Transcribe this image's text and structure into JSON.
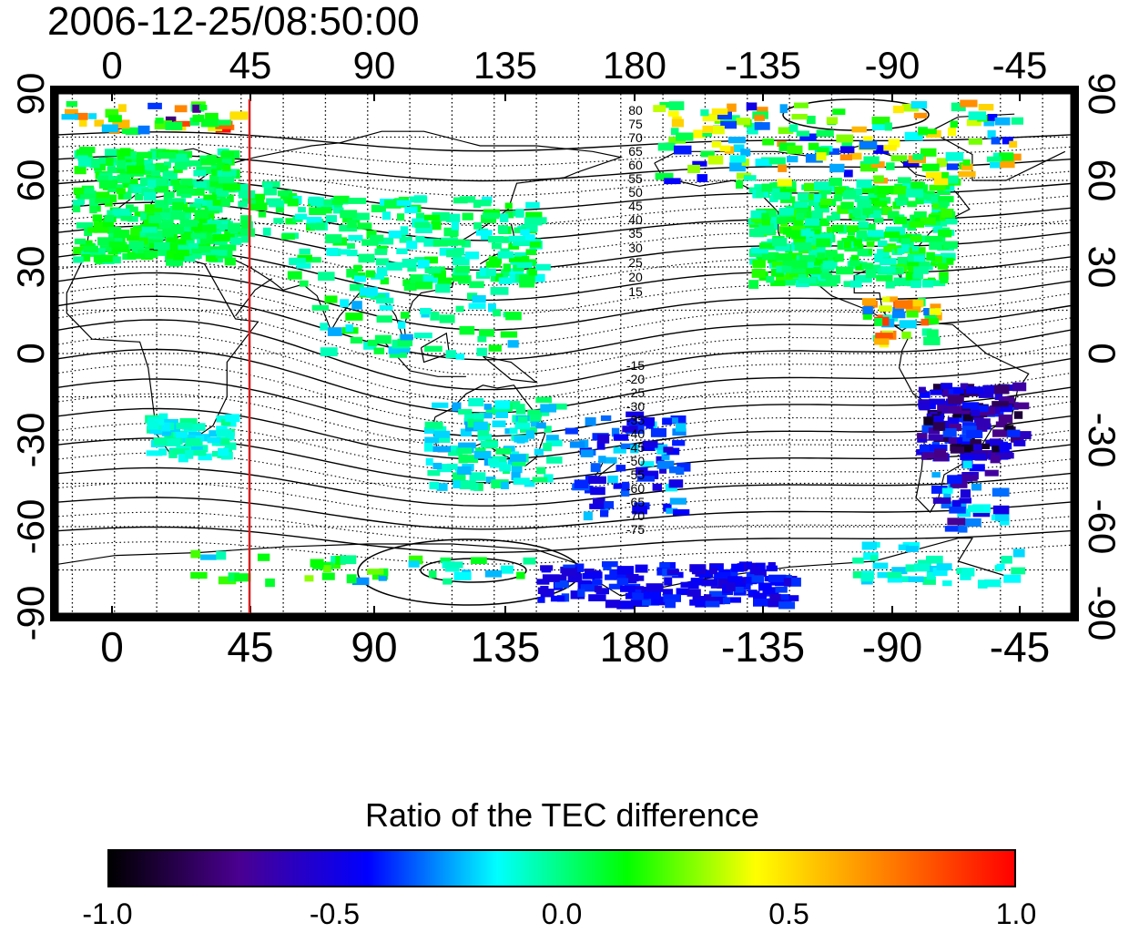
{
  "title": "2006-12-25/08:50:00",
  "map": {
    "x_tick_labels": [
      "0",
      "45",
      "90",
      "135",
      "180",
      "-135",
      "-90",
      "-45"
    ],
    "y_tick_labels": [
      "90",
      "60",
      "30",
      "0",
      "-30",
      "-60",
      "-90"
    ],
    "dip_latitude_labels": [
      "80",
      "75",
      "70",
      "65",
      "60",
      "55",
      "50",
      "45",
      "40",
      "35",
      "30",
      "25",
      "20",
      "15",
      "-15",
      "-20",
      "-25",
      "-30",
      "-35",
      "-40",
      "-45",
      "-50",
      "-55",
      "-60",
      "-65",
      "-70",
      "-75"
    ],
    "marker_longitude": 48,
    "marker_color": "#d81e1e",
    "grid": "dotted"
  },
  "colorbar": {
    "title": "Ratio of the TEC difference",
    "tick_labels": [
      "-1.0",
      "-0.5",
      "0.0",
      "0.5",
      "1.0"
    ],
    "range": [
      -1.0,
      1.0
    ],
    "colors": [
      "#000000",
      "#4a0090",
      "#0000ff",
      "#00ffff",
      "#00ff00",
      "#ffff00",
      "#ff8000",
      "#ff0000"
    ]
  }
}
